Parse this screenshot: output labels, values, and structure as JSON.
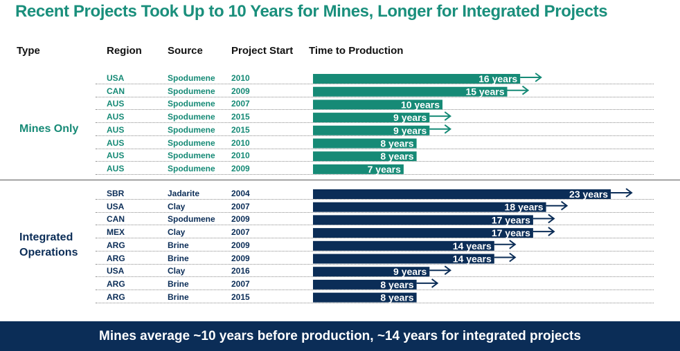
{
  "title": "Recent Projects Took Up to 10 Years for Mines, Longer for Integrated Projects",
  "headers": {
    "type": "Type",
    "region": "Region",
    "source": "Source",
    "start": "Project Start",
    "time": "Time to Production"
  },
  "groups": {
    "mines": "Mines Only",
    "integrated_line1": "Integrated",
    "integrated_line2": "Operations"
  },
  "colors": {
    "title": "#1a8f7c",
    "mines": "#168a76",
    "integrated": "#0b2d57",
    "banner": "#0b2d57"
  },
  "banner": "Mines average ~10 years before production, ~14 years for integrated projects",
  "chart_data": {
    "type": "bar",
    "orientation": "horizontal",
    "series": [
      {
        "name": "Mines Only",
        "rows": [
          {
            "region": "USA",
            "source": "Spodumene",
            "start": "2010",
            "years": 16,
            "label": "16 years",
            "ongoing": true
          },
          {
            "region": "CAN",
            "source": "Spodumene",
            "start": "2009",
            "years": 15,
            "label": "15 years",
            "ongoing": true
          },
          {
            "region": "AUS",
            "source": "Spodumene",
            "start": "2007",
            "years": 10,
            "label": "10 years",
            "ongoing": false
          },
          {
            "region": "AUS",
            "source": "Spodumene",
            "start": "2015",
            "years": 9,
            "label": "9 years",
            "ongoing": true
          },
          {
            "region": "AUS",
            "source": "Spodumene",
            "start": "2015",
            "years": 9,
            "label": "9 years",
            "ongoing": true
          },
          {
            "region": "AUS",
            "source": "Spodumene",
            "start": "2010",
            "years": 8,
            "label": "8 years",
            "ongoing": false
          },
          {
            "region": "AUS",
            "source": "Spodumene",
            "start": "2010",
            "years": 8,
            "label": "8 years",
            "ongoing": false
          },
          {
            "region": "AUS",
            "source": "Spodumene",
            "start": "2009",
            "years": 7,
            "label": "7 years",
            "ongoing": false
          }
        ]
      },
      {
        "name": "Integrated Operations",
        "rows": [
          {
            "region": "SBR",
            "source": "Jadarite",
            "start": "2004",
            "years": 23,
            "label": "23 years",
            "ongoing": true
          },
          {
            "region": "USA",
            "source": "Clay",
            "start": "2007",
            "years": 18,
            "label": "18 years",
            "ongoing": true
          },
          {
            "region": "CAN",
            "source": "Spodumene",
            "start": "2009",
            "years": 17,
            "label": "17 years",
            "ongoing": true
          },
          {
            "region": "MEX",
            "source": "Clay",
            "start": "2007",
            "years": 17,
            "label": "17 years",
            "ongoing": true
          },
          {
            "region": "ARG",
            "source": "Brine",
            "start": "2009",
            "years": 14,
            "label": "14 years",
            "ongoing": true
          },
          {
            "region": "ARG",
            "source": "Brine",
            "start": "2009",
            "years": 14,
            "label": "14 years",
            "ongoing": true
          },
          {
            "region": "USA",
            "source": "Clay",
            "start": "2016",
            "years": 9,
            "label": "9 years",
            "ongoing": true
          },
          {
            "region": "ARG",
            "source": "Brine",
            "start": "2007",
            "years": 8,
            "label": "8 years",
            "ongoing": true
          },
          {
            "region": "ARG",
            "source": "Brine",
            "start": "2015",
            "years": 8,
            "label": "8 years",
            "ongoing": false
          }
        ]
      }
    ]
  }
}
